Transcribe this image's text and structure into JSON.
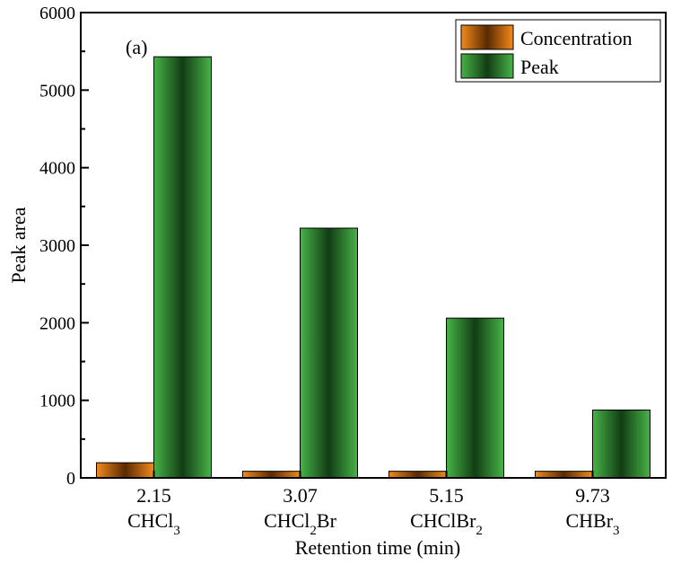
{
  "chart_data": {
    "type": "bar",
    "panel_label": "(a)",
    "xlabel": "Retention time (min)",
    "ylabel": "Peak area",
    "ylim": [
      0,
      6000
    ],
    "yticks": [
      0,
      1000,
      2000,
      3000,
      4000,
      5000,
      6000
    ],
    "legend_position": "top-right",
    "categories": [
      {
        "time": "2.15",
        "compound": [
          {
            "t": "CHCl"
          },
          {
            "t": "3",
            "sub": true
          }
        ]
      },
      {
        "time": "3.07",
        "compound": [
          {
            "t": "CHCl"
          },
          {
            "t": "2",
            "sub": true
          },
          {
            "t": "Br"
          }
        ]
      },
      {
        "time": "5.15",
        "compound": [
          {
            "t": "CHClBr"
          },
          {
            "t": "2",
            "sub": true
          }
        ]
      },
      {
        "time": "9.73",
        "compound": [
          {
            "t": "CHBr"
          },
          {
            "t": "3",
            "sub": true
          }
        ]
      }
    ],
    "series": [
      {
        "name": "Concentration",
        "color": "#f28a1e",
        "dark": "#5a2a00",
        "values": [
          195,
          85,
          85,
          85
        ]
      },
      {
        "name": "Peak",
        "color": "#47b347",
        "dark": "#123d14",
        "values": [
          5430,
          3220,
          2060,
          875
        ]
      }
    ]
  }
}
